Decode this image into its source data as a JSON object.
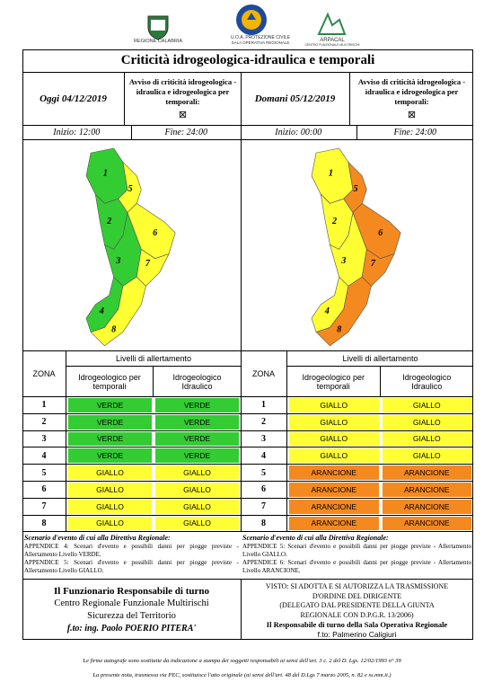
{
  "header": {
    "logos": [
      "REGIONE CALABRIA",
      "U.O.A. PROTEZIONE CIVILE",
      "SALA OPERATIVA REGIONALE",
      "ARPACAL",
      "CENTRO FUNZIONALE MULTIRISCHI"
    ]
  },
  "title": "Criticità idrogeologica-idraulica e temporali",
  "level_colors": {
    "VERDE": "#33cc33",
    "GIALLO": "#ffff33",
    "ARANCIONE": "#f4891f"
  },
  "panels": [
    {
      "date": "Oggi 04/12/2019",
      "notice": "Avviso di criticità idrogeologica - idraulica e idrogeologica per temporali:",
      "checkbox": "⊠",
      "start": "Inizio: 12:00",
      "end": "Fine: 24:00",
      "zones": [
        {
          "label": "1",
          "color": "#33cc33"
        },
        {
          "label": "2",
          "color": "#33cc33"
        },
        {
          "label": "3",
          "color": "#33cc33"
        },
        {
          "label": "4",
          "color": "#33cc33"
        },
        {
          "label": "5",
          "color": "#ffff33"
        },
        {
          "label": "6",
          "color": "#ffff33"
        },
        {
          "label": "7",
          "color": "#ffff33"
        },
        {
          "label": "8",
          "color": "#ffff33"
        }
      ],
      "table": {
        "group": "Livelli di allertamento",
        "zone_header": "ZONA",
        "columns": [
          "Idrogeologico per temporali",
          "Idrogeologico Idraulico"
        ],
        "rows": [
          [
            "1",
            "VERDE",
            "VERDE"
          ],
          [
            "2",
            "VERDE",
            "VERDE"
          ],
          [
            "3",
            "VERDE",
            "VERDE"
          ],
          [
            "4",
            "VERDE",
            "VERDE"
          ],
          [
            "5",
            "GIALLO",
            "GIALLO"
          ],
          [
            "6",
            "GIALLO",
            "GIALLO"
          ],
          [
            "7",
            "GIALLO",
            "GIALLO"
          ],
          [
            "8",
            "GIALLO",
            "GIALLO"
          ]
        ]
      },
      "scenario": {
        "title": "Scenario d'evento di cui alla Direttiva Regionale:",
        "lines": [
          "APPENDICE 4: Scenari d'evento e possibili danni per piogge previste - Allertamento Livello VERDE.",
          "APPENDICE 5: Scenari d'evento e possibili danni per piogge previste - Allertamento Livello GIALLO."
        ]
      }
    },
    {
      "date": "Domani 05/12/2019",
      "notice": "Avviso di criticità idrogeologica - idraulica e idrogeologica per temporali:",
      "checkbox": "⊠",
      "start": "Inizio: 00:00",
      "end": "Fine: 24:00",
      "zones": [
        {
          "label": "1",
          "color": "#ffff33"
        },
        {
          "label": "2",
          "color": "#ffff33"
        },
        {
          "label": "3",
          "color": "#ffff33"
        },
        {
          "label": "4",
          "color": "#ffff33"
        },
        {
          "label": "5",
          "color": "#f4891f"
        },
        {
          "label": "6",
          "color": "#f4891f"
        },
        {
          "label": "7",
          "color": "#f4891f"
        },
        {
          "label": "8",
          "color": "#f4891f"
        }
      ],
      "table": {
        "group": "Livelli di allertamento",
        "zone_header": "ZONA",
        "columns": [
          "Idrogeologico per temporali",
          "Idrogeologico Idraulico"
        ],
        "rows": [
          [
            "1",
            "GIALLO",
            "GIALLO"
          ],
          [
            "2",
            "GIALLO",
            "GIALLO"
          ],
          [
            "3",
            "GIALLO",
            "GIALLO"
          ],
          [
            "4",
            "GIALLO",
            "GIALLO"
          ],
          [
            "5",
            "ARANCIONE",
            "ARANCIONE"
          ],
          [
            "6",
            "ARANCIONE",
            "ARANCIONE"
          ],
          [
            "7",
            "ARANCIONE",
            "ARANCIONE"
          ],
          [
            "8",
            "ARANCIONE",
            "ARANCIONE"
          ]
        ]
      },
      "scenario": {
        "title": "Scenario d'evento di cui alla Direttiva Regionale:",
        "lines": [
          "APPENDICE 5: Scenari d'evento e possibili danni per piogge previste - Allertamento Livello GIALLO.",
          "APPENDICE 6: Scenari d'evento e possibili danni per piogge previste - Allertamento Livello ARANCIONE."
        ]
      }
    }
  ],
  "footer": {
    "left": [
      "Il Funzionario Responsabile di turno",
      "Centro Regionale Funzionale Multirischi",
      "Sicurezza del Territorio",
      "f.to: ing. Paolo POERIO PITERA'"
    ],
    "right": [
      "VISTO: SI ADOTTA E SI AUTORIZZA LA TRASMISSIONE",
      "D'ORDINE DEL DIRIGENTE",
      "(DELEGATO DAL PRESIDENTE DELLA GIUNTA",
      "REGIONALE CON D.P.G.R. 13/2006)",
      "Il Responsabile di turno della Sala Operativa Regionale",
      "f.to: Palmerino Caligiuri"
    ]
  },
  "notes": [
    "Le firme autografe sono sostituite da indicazione a stampa dei soggetti responsabili ai sensi dell'art. 3 c. 2 del D. Lgs. 12/02/1993 n° 39",
    "La presente nota, trasmessa via PEC, sostituisce l'atto originale (ai sensi dell'art. 48 del D.Lgs 7 marzo 2005, n. 82 e ss.mm.ii.)"
  ]
}
